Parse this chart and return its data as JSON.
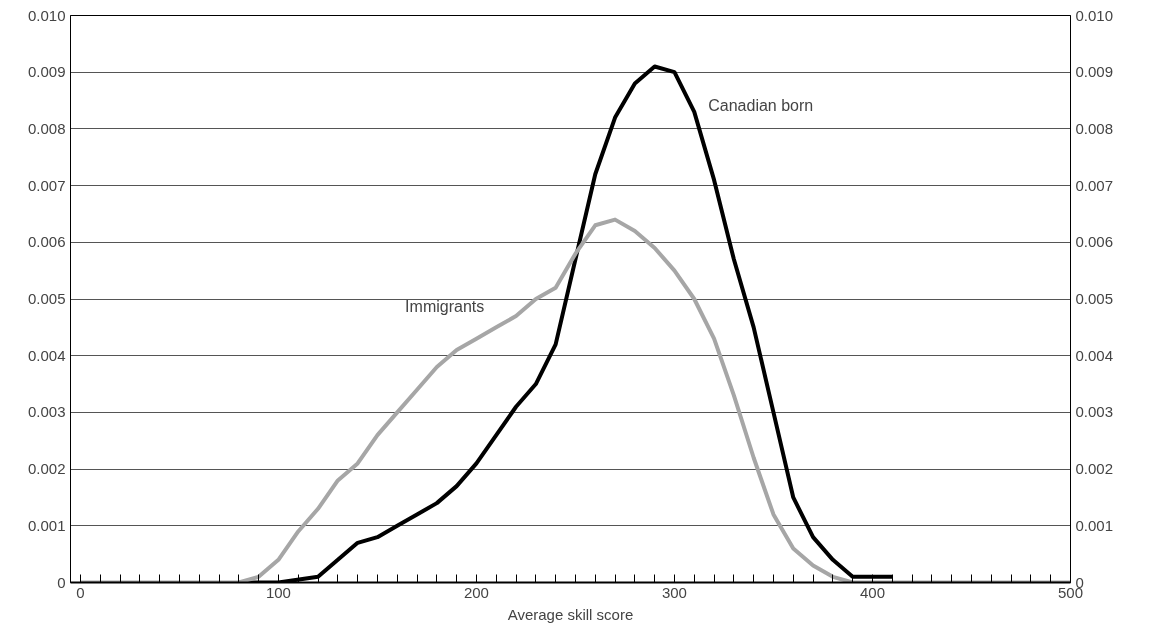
{
  "chart_data": {
    "type": "line",
    "xlabel": "Average skill score",
    "xlim": [
      -5,
      500
    ],
    "ylim": [
      0,
      0.01
    ],
    "y2lim": [
      0,
      0.01
    ],
    "xticks": [
      0,
      {
        "value": 10,
        "label": null
      },
      {
        "value": 20,
        "label": null
      },
      {
        "value": 30,
        "label": null
      },
      {
        "value": 40,
        "label": null
      },
      {
        "value": 50,
        "label": null
      },
      {
        "value": 60,
        "label": null
      },
      {
        "value": 70,
        "label": null
      },
      {
        "value": 80,
        "label": null
      },
      {
        "value": 90,
        "label": null
      },
      100,
      {
        "value": 110,
        "label": null
      },
      {
        "value": 120,
        "label": null
      },
      {
        "value": 130,
        "label": null
      },
      {
        "value": 140,
        "label": null
      },
      {
        "value": 150,
        "label": null
      },
      {
        "value": 160,
        "label": null
      },
      {
        "value": 170,
        "label": null
      },
      {
        "value": 180,
        "label": null
      },
      {
        "value": 190,
        "label": null
      },
      200,
      {
        "value": 210,
        "label": null
      },
      {
        "value": 220,
        "label": null
      },
      {
        "value": 230,
        "label": null
      },
      {
        "value": 240,
        "label": null
      },
      {
        "value": 250,
        "label": null
      },
      {
        "value": 260,
        "label": null
      },
      {
        "value": 270,
        "label": null
      },
      {
        "value": 280,
        "label": null
      },
      {
        "value": 290,
        "label": null
      },
      300,
      {
        "value": 310,
        "label": null
      },
      {
        "value": 320,
        "label": null
      },
      {
        "value": 330,
        "label": null
      },
      {
        "value": 340,
        "label": null
      },
      {
        "value": 350,
        "label": null
      },
      {
        "value": 360,
        "label": null
      },
      {
        "value": 370,
        "label": null
      },
      {
        "value": 380,
        "label": null
      },
      {
        "value": 390,
        "label": null
      },
      400,
      {
        "value": 410,
        "label": null
      },
      {
        "value": 420,
        "label": null
      },
      {
        "value": 430,
        "label": null
      },
      {
        "value": 440,
        "label": null
      },
      {
        "value": 450,
        "label": null
      },
      {
        "value": 460,
        "label": null
      },
      {
        "value": 470,
        "label": null
      },
      {
        "value": 480,
        "label": null
      },
      {
        "value": 490,
        "label": null
      },
      500
    ],
    "yticks": [
      0,
      0.001,
      0.002,
      0.003,
      0.004,
      0.005,
      0.006,
      0.007,
      0.008,
      0.009,
      {
        "value": 0.01,
        "label": "0.010"
      }
    ],
    "y2ticks": [
      0,
      0.001,
      0.002,
      0.003,
      0.004,
      0.005,
      0.006,
      0.007,
      0.008,
      0.009,
      {
        "value": 0.01,
        "label": "0.010"
      }
    ],
    "grid": "y",
    "line_style": "solid",
    "marker": "none",
    "series": [
      {
        "name": "Canadian born",
        "color": "#000000",
        "x": [
          80,
          100,
          120,
          130,
          140,
          150,
          160,
          170,
          180,
          190,
          200,
          210,
          220,
          230,
          240,
          250,
          260,
          270,
          280,
          290,
          300,
          310,
          320,
          330,
          340,
          350,
          360,
          370,
          380,
          390,
          400,
          410
        ],
        "values": [
          0,
          0,
          0.0001,
          0.0004,
          0.0007,
          0.0008,
          0.001,
          0.0012,
          0.0014,
          0.0017,
          0.0021,
          0.0026,
          0.0031,
          0.0035,
          0.0042,
          0.0057,
          0.0072,
          0.0082,
          0.0088,
          0.0091,
          0.009,
          0.0083,
          0.0071,
          0.0057,
          0.0045,
          0.003,
          0.0015,
          0.0008,
          0.0004,
          0.0001,
          0.0001,
          0.0001
        ]
      },
      {
        "name": "Immigrants",
        "color": "#a6a6a6",
        "x": [
          0,
          80,
          90,
          100,
          110,
          120,
          130,
          140,
          150,
          160,
          170,
          180,
          190,
          200,
          210,
          220,
          230,
          240,
          250,
          260,
          270,
          280,
          290,
          300,
          310,
          320,
          330,
          340,
          350,
          360,
          370,
          380,
          390,
          500
        ],
        "values": [
          0,
          0,
          0.0001,
          0.0004,
          0.0009,
          0.0013,
          0.0018,
          0.0021,
          0.0026,
          0.003,
          0.0034,
          0.0038,
          0.0041,
          0.0043,
          0.0045,
          0.0047,
          0.005,
          0.0052,
          0.0058,
          0.0063,
          0.0064,
          0.0062,
          0.0059,
          0.0055,
          0.005,
          0.0043,
          0.0033,
          0.0022,
          0.0012,
          0.0006,
          0.0003,
          0.0001,
          0,
          0
        ]
      }
    ]
  }
}
